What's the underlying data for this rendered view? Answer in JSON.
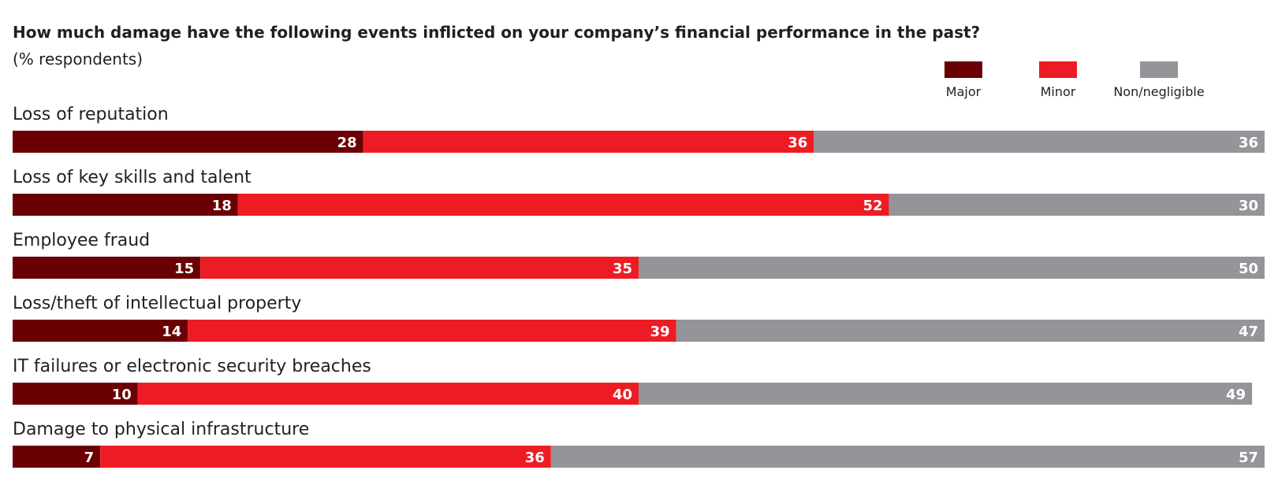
{
  "chart_data": {
    "type": "bar",
    "orientation": "horizontal",
    "stacked": true,
    "title": "How much damage have the following events inflicted on your company’s financial performance in the past?",
    "subtitle": "(% respondents)",
    "legend_position": "top-right",
    "categories": [
      "Loss of reputation",
      "Loss of key skills and talent",
      "Employee fraud",
      "Loss/theft of intellectual property",
      "IT failures or electronic security breaches",
      "Damage to physical infrastructure"
    ],
    "series": [
      {
        "name": "Major",
        "color": "#6b0004",
        "values": [
          28,
          18,
          15,
          14,
          10,
          7
        ]
      },
      {
        "name": "Minor",
        "color": "#ed1c24",
        "values": [
          36,
          52,
          35,
          39,
          40,
          36
        ]
      },
      {
        "name": "Non/negligible",
        "color": "#939598",
        "values": [
          36,
          30,
          50,
          47,
          49,
          57
        ]
      }
    ],
    "xlim": [
      0,
      100
    ]
  }
}
